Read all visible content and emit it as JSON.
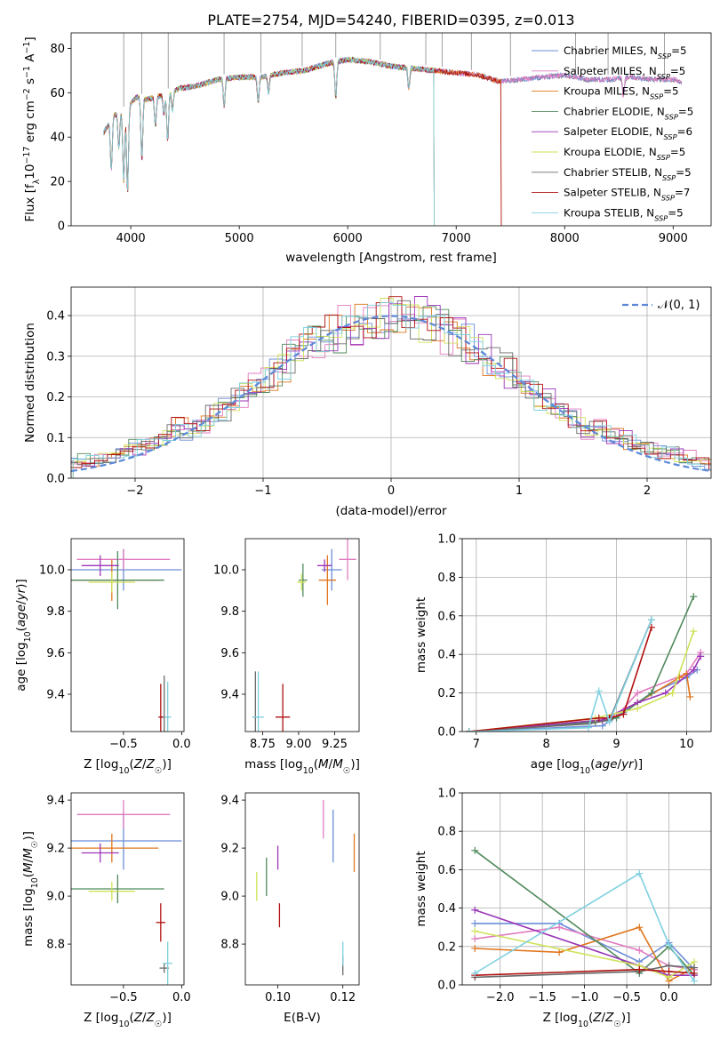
{
  "colors": {
    "Chabrier MILES": "#6b8ed8",
    "Salpeter MILES": "#e07cc0",
    "Kroupa MILES": "#e0761e",
    "Chabrier ELODIE": "#508a5c",
    "Salpeter ELODIE": "#9b35b8",
    "Kroupa ELODIE": "#cfe25a",
    "Chabrier STELIB": "#6a6a6a",
    "Salpeter STELIB": "#b01010",
    "Kroupa STELIB": "#7fd0e0",
    "gaussian": "#5b88d8"
  },
  "chart_data": [
    {
      "id": "spectrum",
      "type": "line",
      "title": "PLATE=2754, MJD=54240, FIBERID=0395, z=0.013",
      "xlabel": "wavelength [Angstrom, rest frame]",
      "ylabel": "Flux [f_λ10^-17 erg cm^-2 s^-1 A^-1]",
      "xlim": [
        3450,
        9350
      ],
      "ylim": [
        0,
        87
      ],
      "xticks": [
        4000,
        5000,
        6000,
        7000,
        8000,
        9000
      ],
      "yticks": [
        0,
        20,
        40,
        60,
        80
      ],
      "grid": false,
      "legend_position": "top-right",
      "continuum": {
        "x": [
          3750,
          3850,
          3950,
          4050,
          4150,
          4300,
          4450,
          4600,
          4800,
          5000,
          5200,
          5400,
          5600,
          5800,
          6000,
          6200,
          6400,
          6600,
          6800,
          7000,
          7200,
          7400,
          7600,
          7800,
          8000,
          8200,
          8400,
          8600,
          8800,
          9000,
          9080
        ],
        "y": [
          42,
          50,
          52,
          58,
          57,
          59,
          62,
          63,
          66,
          67,
          67,
          69,
          70,
          73,
          75,
          74,
          72,
          71,
          70,
          69,
          68,
          65,
          66,
          67,
          68,
          66,
          66,
          67,
          66,
          66,
          65
        ]
      },
      "absorption_lines": [
        {
          "x": 3820,
          "y": 25
        },
        {
          "x": 3890,
          "y": 35
        },
        {
          "x": 3935,
          "y": 20
        },
        {
          "x": 3970,
          "y": 15
        },
        {
          "x": 4102,
          "y": 30
        },
        {
          "x": 4227,
          "y": 45
        },
        {
          "x": 4305,
          "y": 50
        },
        {
          "x": 4340,
          "y": 38
        },
        {
          "x": 4384,
          "y": 52
        },
        {
          "x": 4861,
          "y": 54
        },
        {
          "x": 5175,
          "y": 56
        },
        {
          "x": 5270,
          "y": 60
        },
        {
          "x": 5890,
          "y": 58
        },
        {
          "x": 6563,
          "y": 62
        },
        {
          "x": 8542,
          "y": 58
        }
      ],
      "sky_spikes": [
        3935,
        4102,
        4345,
        4860,
        5200,
        5580,
        5890,
        6300,
        6720,
        6870,
        7140,
        7500,
        8100,
        8400,
        8920
      ],
      "series": [
        {
          "name": "Chabrier MILES, N_SSP=5",
          "cutoff": null
        },
        {
          "name": "Salpeter MILES, N_SSP=5",
          "cutoff": null
        },
        {
          "name": "Kroupa MILES, N_SSP=5",
          "cutoff": 7420
        },
        {
          "name": "Chabrier ELODIE, N_SSP=5",
          "cutoff": 6800
        },
        {
          "name": "Salpeter ELODIE, N_SSP=6",
          "cutoff": 6800
        },
        {
          "name": "Kroupa ELODIE, N_SSP=5",
          "cutoff": 6800
        },
        {
          "name": "Chabrier STELIB, N_SSP=5",
          "cutoff": null
        },
        {
          "name": "Salpeter STELIB, N_SSP=7",
          "cutoff": 7420
        },
        {
          "name": "Kroupa STELIB, N_SSP=5",
          "cutoff": 6800
        }
      ],
      "legend_names": [
        [
          "Chabrier MILES, N",
          "SSP",
          "=5"
        ],
        [
          "Salpeter MILES, N",
          "SSP",
          "=5"
        ],
        [
          "Kroupa MILES, N",
          "SSP",
          "=5"
        ],
        [
          "Chabrier ELODIE, N",
          "SSP",
          "=5"
        ],
        [
          "Salpeter ELODIE, N",
          "SSP",
          "=6"
        ],
        [
          "Kroupa ELODIE, N",
          "SSP",
          "=5"
        ],
        [
          "Chabrier STELIB, N",
          "SSP",
          "=5"
        ],
        [
          "Salpeter STELIB, N",
          "SSP",
          "=7"
        ],
        [
          "Kroupa STELIB, N",
          "SSP",
          "=5"
        ]
      ]
    },
    {
      "id": "residuals",
      "type": "line",
      "xlabel": "(data-model)/error",
      "ylabel": "Normed distribution",
      "xlim": [
        -2.5,
        2.5
      ],
      "ylim": [
        0,
        0.47
      ],
      "xticks": [
        -2,
        -1,
        0,
        1,
        2
      ],
      "yticks": [
        0.0,
        0.1,
        0.2,
        0.3,
        0.4
      ],
      "grid": true,
      "legend": "N(0,1)",
      "legend_position": "top-right",
      "bin_width": 0.1,
      "base_bin_start": -2.55
    },
    {
      "id": "age_vs_Z",
      "type": "scatter",
      "xlabel": "Z [log10(Z/Z☉)]",
      "ylabel": "age  [log10(age/yr)]",
      "xlim": [
        -0.95,
        0.02
      ],
      "ylim": [
        9.22,
        10.15
      ],
      "xticks": [
        -0.5,
        0.0
      ],
      "yticks": [
        9.4,
        9.6,
        9.8,
        10.0
      ],
      "points": [
        {
          "series": "Chabrier MILES",
          "x": -0.5,
          "y": 10.0,
          "xerr": 0.5,
          "yerr": 0.1
        },
        {
          "series": "Salpeter MILES",
          "x": -0.5,
          "y": 10.05,
          "xerr": 0.4,
          "yerr": 0.05
        },
        {
          "series": "Kroupa MILES",
          "x": -0.6,
          "y": 9.95,
          "xerr": 0.4,
          "yerr": 0.1
        },
        {
          "series": "Chabrier ELODIE",
          "x": -0.55,
          "y": 9.95,
          "xerr": 0.4,
          "yerr": 0.14
        },
        {
          "series": "Salpeter ELODIE",
          "x": -0.7,
          "y": 10.02,
          "xerr": 0.16,
          "yerr": 0.05
        },
        {
          "series": "Kroupa ELODIE",
          "x": -0.6,
          "y": 9.94,
          "xerr": 0.2,
          "yerr": 0.05
        },
        {
          "series": "Chabrier STELIB",
          "x": -0.15,
          "y": 9.29,
          "xerr": 0.04,
          "yerr": 0.2
        },
        {
          "series": "Salpeter STELIB",
          "x": -0.18,
          "y": 9.29,
          "xerr": 0.02,
          "yerr": 0.16
        },
        {
          "series": "Kroupa STELIB",
          "x": -0.12,
          "y": 9.29,
          "xerr": 0.03,
          "yerr": 0.17
        }
      ]
    },
    {
      "id": "age_vs_mass",
      "type": "scatter",
      "xlabel": "mass [log10(M/M☉)]",
      "ylabel": "",
      "xlim": [
        8.63,
        9.42
      ],
      "ylim": [
        9.22,
        10.15
      ],
      "xticks": [
        8.75,
        9.0,
        9.25
      ],
      "yticks": [
        9.4,
        9.6,
        9.8,
        10.0
      ],
      "points": [
        {
          "series": "Chabrier MILES",
          "x": 9.23,
          "y": 10.0,
          "xerr": 0.07,
          "yerr": 0.1
        },
        {
          "series": "Salpeter MILES",
          "x": 9.34,
          "y": 10.05,
          "xerr": 0.06,
          "yerr": 0.1
        },
        {
          "series": "Kroupa MILES",
          "x": 9.2,
          "y": 9.95,
          "xerr": 0.06,
          "yerr": 0.12
        },
        {
          "series": "Chabrier ELODIE",
          "x": 9.03,
          "y": 9.95,
          "xerr": 0.03,
          "yerr": 0.08
        },
        {
          "series": "Salpeter ELODIE",
          "x": 9.18,
          "y": 10.02,
          "xerr": 0.05,
          "yerr": 0.03
        },
        {
          "series": "Kroupa ELODIE",
          "x": 9.02,
          "y": 9.94,
          "xerr": 0.03,
          "yerr": 0.04
        },
        {
          "series": "Chabrier STELIB",
          "x": 8.7,
          "y": 9.29,
          "xerr": 0.02,
          "yerr": 0.22
        },
        {
          "series": "Salpeter STELIB",
          "x": 8.89,
          "y": 9.29,
          "xerr": 0.05,
          "yerr": 0.16
        },
        {
          "series": "Kroupa STELIB",
          "x": 8.72,
          "y": 9.29,
          "xerr": 0.04,
          "yerr": 0.22
        }
      ]
    },
    {
      "id": "weight_vs_age",
      "type": "line",
      "xlabel": "age  [log10(age/yr)]",
      "ylabel": "mass weight",
      "xlim": [
        6.8,
        10.35
      ],
      "ylim": [
        0,
        1.0
      ],
      "xticks": [
        7,
        8,
        9,
        10
      ],
      "yticks": [
        0.0,
        0.2,
        0.4,
        0.6,
        0.8,
        1.0
      ],
      "grid": true,
      "series": [
        {
          "name": "Chabrier MILES",
          "x": [
            6.9,
            8.8,
            9.1,
            9.5,
            10.0,
            10.15
          ],
          "y": [
            0,
            0.03,
            0.1,
            0.2,
            0.28,
            0.32
          ]
        },
        {
          "name": "Salpeter MILES",
          "x": [
            6.9,
            8.7,
            9.0,
            9.3,
            10.0,
            10.2
          ],
          "y": [
            0,
            0.05,
            0.08,
            0.2,
            0.3,
            0.41
          ]
        },
        {
          "name": "Kroupa MILES",
          "x": [
            6.9,
            8.8,
            9.3,
            9.9,
            10.0,
            10.05
          ],
          "y": [
            0,
            0.06,
            0.15,
            0.28,
            0.3,
            0.18
          ]
        },
        {
          "name": "Chabrier ELODIE",
          "x": [
            6.9,
            8.7,
            9.0,
            9.5,
            10.1
          ],
          "y": [
            0,
            0.05,
            0.07,
            0.2,
            0.7
          ]
        },
        {
          "name": "Salpeter ELODIE",
          "x": [
            6.9,
            8.8,
            9.3,
            9.7,
            10.1,
            10.2
          ],
          "y": [
            0,
            0.06,
            0.15,
            0.2,
            0.32,
            0.39
          ]
        },
        {
          "name": "Kroupa ELODIE",
          "x": [
            6.9,
            8.7,
            9.3,
            9.8,
            10.1
          ],
          "y": [
            0,
            0.07,
            0.12,
            0.2,
            0.52
          ]
        },
        {
          "name": "Chabrier STELIB",
          "x": [
            6.9,
            8.6,
            8.9,
            9.5
          ],
          "y": [
            0,
            0.04,
            0.06,
            0.58
          ]
        },
        {
          "name": "Salpeter STELIB",
          "x": [
            6.9,
            8.75,
            8.9,
            9.1,
            9.5
          ],
          "y": [
            0,
            0.07,
            0.07,
            0.09,
            0.54
          ]
        },
        {
          "name": "Kroupa STELIB",
          "x": [
            6.9,
            8.6,
            8.75,
            8.9,
            9.5
          ],
          "y": [
            0,
            0.02,
            0.21,
            0.05,
            0.58
          ]
        }
      ]
    },
    {
      "id": "mass_vs_Z",
      "type": "scatter",
      "xlabel": "Z [log10(Z/Z☉)]",
      "ylabel": "mass [log10(M/M☉)]",
      "xlim": [
        -0.95,
        0.02
      ],
      "ylim": [
        8.63,
        9.43
      ],
      "xticks": [
        -0.5,
        0.0
      ],
      "yticks": [
        8.8,
        9.0,
        9.2,
        9.4
      ],
      "points": [
        {
          "series": "Chabrier MILES",
          "x": -0.5,
          "y": 9.23,
          "xerr": 0.5,
          "yerr": 0.12
        },
        {
          "series": "Salpeter MILES",
          "x": -0.5,
          "y": 9.34,
          "xerr": 0.4,
          "yerr": 0.06
        },
        {
          "series": "Kroupa MILES",
          "x": -0.6,
          "y": 9.2,
          "xerr": 0.4,
          "yerr": 0.06
        },
        {
          "series": "Chabrier ELODIE",
          "x": -0.55,
          "y": 9.03,
          "xerr": 0.4,
          "yerr": 0.06
        },
        {
          "series": "Salpeter ELODIE",
          "x": -0.7,
          "y": 9.18,
          "xerr": 0.16,
          "yerr": 0.04
        },
        {
          "series": "Kroupa ELODIE",
          "x": -0.6,
          "y": 9.02,
          "xerr": 0.2,
          "yerr": 0.04
        },
        {
          "series": "Chabrier STELIB",
          "x": -0.15,
          "y": 8.7,
          "xerr": 0.04,
          "yerr": 0.02
        },
        {
          "series": "Salpeter STELIB",
          "x": -0.18,
          "y": 8.89,
          "xerr": 0.04,
          "yerr": 0.08
        },
        {
          "series": "Kroupa STELIB",
          "x": -0.12,
          "y": 8.72,
          "xerr": 0.04,
          "yerr": 0.09
        }
      ]
    },
    {
      "id": "mass_vs_EBV",
      "type": "scatter",
      "xlabel": "E(B-V)",
      "ylabel": "",
      "xlim": [
        0.09,
        0.125
      ],
      "ylim": [
        8.63,
        9.43
      ],
      "xticks": [
        0.1,
        0.12
      ],
      "yticks": [
        8.8,
        9.0,
        9.2,
        9.4
      ],
      "points": [
        {
          "series": "Chabrier MILES",
          "x": 0.117,
          "y": 9.25,
          "xerr": 0,
          "yerr": 0.11
        },
        {
          "series": "Salpeter MILES",
          "x": 0.114,
          "y": 9.32,
          "xerr": 0,
          "yerr": 0.08
        },
        {
          "series": "Kroupa MILES",
          "x": 0.1235,
          "y": 9.18,
          "xerr": 0,
          "yerr": 0.08
        },
        {
          "series": "Chabrier ELODIE",
          "x": 0.0965,
          "y": 9.08,
          "xerr": 0,
          "yerr": 0.08
        },
        {
          "series": "Salpeter ELODIE",
          "x": 0.1,
          "y": 9.16,
          "xerr": 0,
          "yerr": 0.05
        },
        {
          "series": "Kroupa ELODIE",
          "x": 0.0935,
          "y": 9.04,
          "xerr": 0,
          "yerr": 0.06
        },
        {
          "series": "Chabrier STELIB",
          "x": 0.12,
          "y": 8.71,
          "xerr": 0,
          "yerr": 0.04
        },
        {
          "series": "Salpeter STELIB",
          "x": 0.1005,
          "y": 8.92,
          "xerr": 0,
          "yerr": 0.05
        },
        {
          "series": "Kroupa STELIB",
          "x": 0.12,
          "y": 8.76,
          "xerr": 0,
          "yerr": 0.05
        }
      ]
    },
    {
      "id": "weight_vs_Z",
      "type": "line",
      "xlabel": "Z [log10(Z/Z☉)]",
      "ylabel": "mass weight",
      "xlim": [
        -2.45,
        0.5
      ],
      "ylim": [
        0,
        1.0
      ],
      "xticks": [
        -2.0,
        -1.5,
        -1.0,
        -0.5,
        0.0
      ],
      "yticks": [
        0.0,
        0.2,
        0.4,
        0.6,
        0.8,
        1.0
      ],
      "grid": true,
      "series": [
        {
          "name": "Chabrier MILES",
          "x": [
            -2.3,
            -1.3,
            -0.35,
            0.0,
            0.3
          ],
          "y": [
            0.32,
            0.32,
            0.12,
            0.22,
            0.08
          ]
        },
        {
          "name": "Salpeter MILES",
          "x": [
            -2.3,
            -1.3,
            -0.35,
            0.0,
            0.3
          ],
          "y": [
            0.24,
            0.3,
            0.18,
            0.1,
            0.08
          ]
        },
        {
          "name": "Kroupa MILES",
          "x": [
            -2.3,
            -1.3,
            -0.35,
            0.0,
            0.3
          ],
          "y": [
            0.19,
            0.17,
            0.3,
            0.02,
            0.09
          ]
        },
        {
          "name": "Chabrier ELODIE",
          "x": [
            -2.3,
            -0.35,
            0.0,
            0.3
          ],
          "y": [
            0.7,
            0.06,
            0.2,
            0.05
          ]
        },
        {
          "name": "Salpeter ELODIE",
          "x": [
            -2.3,
            -0.35,
            0.0,
            0.3
          ],
          "y": [
            0.39,
            0.1,
            0.05,
            0.05
          ]
        },
        {
          "name": "Kroupa ELODIE",
          "x": [
            -2.3,
            -0.35,
            0.0,
            0.3
          ],
          "y": [
            0.28,
            0.1,
            0.04,
            0.12
          ]
        },
        {
          "name": "Chabrier STELIB",
          "x": [
            -2.3,
            -0.35,
            0.0,
            0.3
          ],
          "y": [
            0.04,
            0.07,
            0.1,
            0.09
          ]
        },
        {
          "name": "Salpeter STELIB",
          "x": [
            -2.3,
            -0.35,
            0.0,
            0.3
          ],
          "y": [
            0.05,
            0.08,
            0.07,
            0.06
          ]
        },
        {
          "name": "Kroupa STELIB",
          "x": [
            -2.3,
            -0.35,
            0.0,
            0.3
          ],
          "y": [
            0.06,
            0.58,
            0.21,
            0.02
          ]
        }
      ]
    }
  ]
}
